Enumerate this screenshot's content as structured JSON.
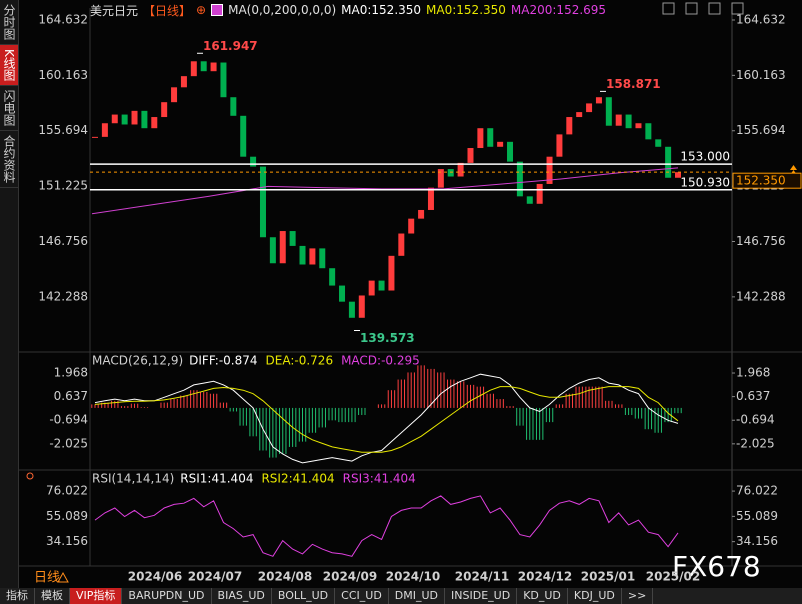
{
  "sidebar": [
    "分时图",
    "K线图",
    "闪电图",
    "合约资料"
  ],
  "header": {
    "symbol": "美元日元",
    "period": "【日线】",
    "ma_params": "MA(0,0,200,0,0,0)",
    "ma_values": [
      "MA0:152.350",
      "MA0:152.350",
      "MA200:152.695"
    ]
  },
  "chart_data": [
    {
      "type": "candlestick",
      "close": [
        155.2,
        156.3,
        157.0,
        156.2,
        157.3,
        155.9,
        156.8,
        158.0,
        159.2,
        160.1,
        161.3,
        160.5,
        161.2,
        158.4,
        156.9,
        153.6,
        152.8,
        147.1,
        145.0,
        147.6,
        146.4,
        144.9,
        146.2,
        144.6,
        143.2,
        141.9,
        140.6,
        142.4,
        143.6,
        142.8,
        145.6,
        147.4,
        148.6,
        149.3,
        151.1,
        152.6,
        152.0,
        153.1,
        154.3,
        155.9,
        154.4,
        154.8,
        153.2,
        150.4,
        149.8,
        151.4,
        153.6,
        155.4,
        156.8,
        157.2,
        157.9,
        158.4,
        156.1,
        157.0,
        155.9,
        156.3,
        155.0,
        154.4,
        151.9,
        152.35
      ],
      "up_color": "#ff3c3c",
      "down_color": "#00b050",
      "ylim": [
        138,
        165.6
      ],
      "yticks": [
        142.288,
        146.756,
        151.225,
        155.694,
        160.163,
        164.632
      ],
      "ma200": {
        "values": [
          149.0,
          149.7,
          150.4,
          151.2,
          151.1,
          151.0,
          151.0,
          151.4,
          151.8,
          152.3,
          152.695
        ],
        "color": "#d040d0"
      },
      "levels": [
        {
          "value": 153,
          "label": "153.000"
        },
        {
          "value": 150.93,
          "label": "150.930"
        }
      ],
      "last": {
        "value": 152.35,
        "label": "152.350"
      },
      "highs": [
        161.947,
        158.871
      ],
      "lows": [
        139.573
      ],
      "categories": [
        "2024/06",
        "2024/07",
        "2024/08",
        "2024/09",
        "2024/10",
        "2024/11",
        "2024/12",
        "2025/01",
        "2025/02"
      ]
    },
    {
      "type": "macd",
      "title": "MACD(26,12,9)",
      "legend": [
        "DIFF:-0.874",
        "DEA:-0.726",
        "MACD:-0.295"
      ],
      "ylim": [
        -3.5,
        2.42
      ],
      "yticks": [
        -2.025,
        -0.694,
        0.637,
        1.968
      ],
      "series": [
        {
          "color": "#ffffff",
          "values": [
            0.3,
            0.4,
            0.5,
            0.4,
            0.5,
            0.4,
            0.4,
            0.6,
            0.8,
            1.0,
            1.3,
            1.4,
            1.5,
            1.3,
            1.0,
            0.5,
            0.0,
            -1.2,
            -2.2,
            -2.6,
            -2.9,
            -3.1,
            -3.0,
            -2.9,
            -2.8,
            -2.9,
            -3.0,
            -2.7,
            -2.5,
            -2.4,
            -1.9,
            -1.4,
            -0.9,
            -0.4,
            0.2,
            0.8,
            1.2,
            1.5,
            1.7,
            1.9,
            1.8,
            1.7,
            1.3,
            0.6,
            0.0,
            -0.2,
            0.2,
            0.7,
            1.1,
            1.4,
            1.6,
            1.7,
            1.4,
            1.3,
            1.0,
            0.8,
            0.0,
            -0.4,
            -0.7,
            -0.874
          ]
        },
        {
          "color": "#e8e800",
          "values": [
            0.2,
            0.25,
            0.3,
            0.35,
            0.38,
            0.38,
            0.4,
            0.45,
            0.55,
            0.65,
            0.8,
            0.95,
            1.1,
            1.15,
            1.1,
            1.0,
            0.8,
            0.4,
            -0.1,
            -0.6,
            -1.1,
            -1.5,
            -1.8,
            -2.0,
            -2.2,
            -2.3,
            -2.4,
            -2.5,
            -2.5,
            -2.5,
            -2.4,
            -2.2,
            -1.9,
            -1.6,
            -1.2,
            -0.8,
            -0.4,
            0.0,
            0.4,
            0.7,
            1.0,
            1.2,
            1.2,
            1.1,
            0.9,
            0.7,
            0.6,
            0.6,
            0.7,
            0.8,
            1.0,
            1.1,
            1.2,
            1.2,
            1.2,
            1.1,
            0.6,
            0.3,
            -0.3,
            -0.726
          ]
        }
      ],
      "hist": {
        "up_color": "#ff4040",
        "down_color": "#20c070",
        "values": [
          0.2,
          0.3,
          0.4,
          0.1,
          0.24,
          0.04,
          0,
          0.3,
          0.5,
          0.7,
          1.0,
          0.9,
          0.8,
          0.3,
          -0.2,
          -1.0,
          -1.6,
          -2.4,
          -2.8,
          -2.6,
          -2.2,
          -1.9,
          -1.4,
          -1.1,
          -0.7,
          -0.8,
          -0.8,
          -0.4,
          0.0,
          0.2,
          1.0,
          1.6,
          2.0,
          2.4,
          2.2,
          2.0,
          1.6,
          1.5,
          1.3,
          1.2,
          0.8,
          0.5,
          0.1,
          -1.0,
          -1.8,
          -1.8,
          -0.8,
          0.2,
          0.8,
          1.2,
          1.2,
          1.2,
          0.4,
          0.2,
          -0.4,
          -0.6,
          -1.2,
          -1.4,
          -0.8,
          -0.295
        ]
      }
    },
    {
      "type": "line",
      "title": "RSI(14,14,14)",
      "legend": [
        "RSI1:41.404",
        "RSI2:41.404",
        "RSI3:41.404"
      ],
      "ylim": [
        14,
        85.2
      ],
      "yticks": [
        34.156,
        55.089,
        76.022
      ],
      "series": [
        {
          "color": "#e040e0",
          "values": [
            52,
            58,
            62,
            55,
            60,
            54,
            56,
            62,
            65,
            66,
            70,
            63,
            68,
            50,
            45,
            38,
            40,
            25,
            22,
            35,
            28,
            24,
            32,
            28,
            25,
            24,
            22,
            35,
            40,
            36,
            55,
            60,
            62,
            62,
            68,
            72,
            65,
            67,
            70,
            72,
            58,
            62,
            52,
            40,
            38,
            48,
            60,
            66,
            68,
            65,
            70,
            68,
            50,
            58,
            48,
            52,
            42,
            40,
            30,
            41.404
          ]
        }
      ]
    }
  ],
  "footer": {
    "period": "日线",
    "watermark": "FX678",
    "tabs": [
      "指标",
      "模板",
      "VIP指标",
      "BARUPDN_UD",
      "BIAS_UD",
      "BOLL_UD",
      "CCI_UD",
      "DMI_UD",
      "INSIDE_UD",
      "KD_UD",
      "KDJ_UD",
      ">>"
    ]
  }
}
